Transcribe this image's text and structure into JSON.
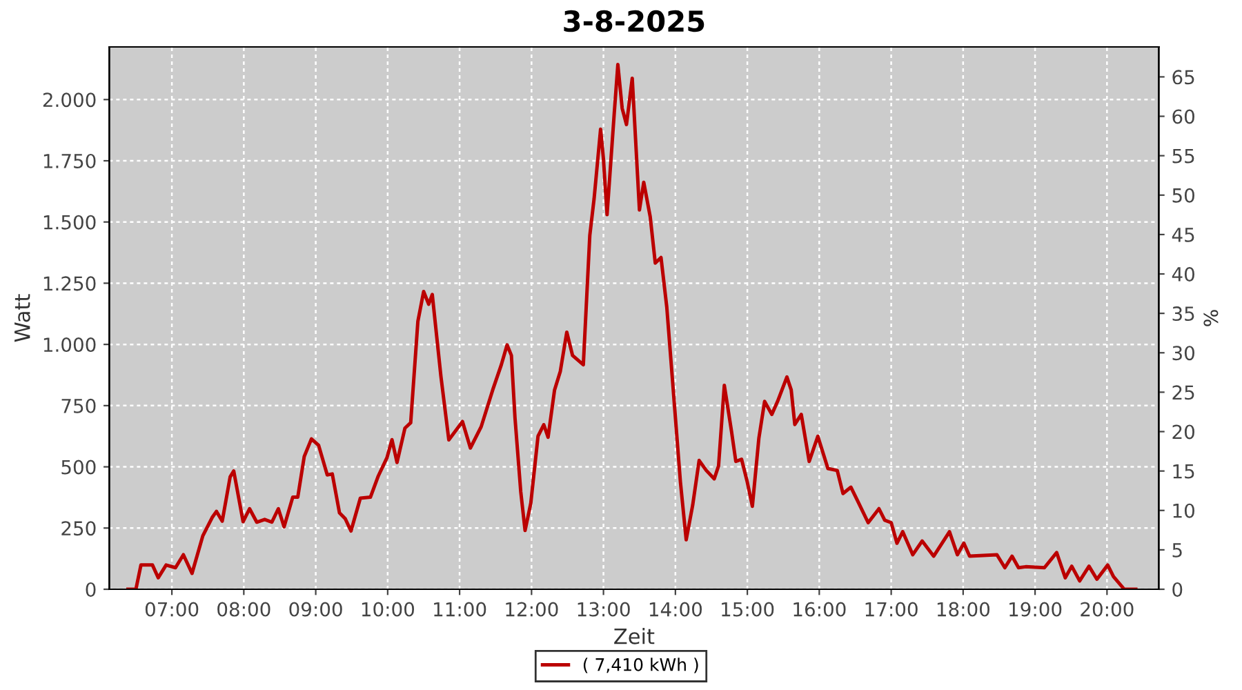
{
  "chart_data": {
    "type": "line",
    "title": "3-8-2025",
    "xlabel": "Zeit",
    "ylabel": "Watt",
    "y2label": "%",
    "xlim": [
      6.13,
      20.72
    ],
    "xticks": [
      {
        "value": 7,
        "label": "07:00"
      },
      {
        "value": 8,
        "label": "08:00"
      },
      {
        "value": 9,
        "label": "09:00"
      },
      {
        "value": 10,
        "label": "10:00"
      },
      {
        "value": 11,
        "label": "11:00"
      },
      {
        "value": 12,
        "label": "12:00"
      },
      {
        "value": 13,
        "label": "13:00"
      },
      {
        "value": 14,
        "label": "14:00"
      },
      {
        "value": 15,
        "label": "15:00"
      },
      {
        "value": 16,
        "label": "16:00"
      },
      {
        "value": 17,
        "label": "17:00"
      },
      {
        "value": 18,
        "label": "18:00"
      },
      {
        "value": 19,
        "label": "19:00"
      },
      {
        "value": 20,
        "label": "20:00"
      }
    ],
    "ylim": [
      0,
      2215
    ],
    "yticks": [
      0,
      {
        "value": 250,
        "label": "250"
      },
      {
        "value": 500,
        "label": "500"
      },
      {
        "value": 750,
        "label": "750"
      },
      {
        "value": 1000,
        "label": "1.000"
      },
      {
        "value": 1250,
        "label": "1.250"
      },
      {
        "value": 1500,
        "label": "1.500"
      },
      {
        "value": 1750,
        "label": "1.750"
      },
      {
        "value": 2000,
        "label": "2.000"
      }
    ],
    "y2lim": [
      0,
      68.8
    ],
    "y2ticks": [
      0,
      5,
      10,
      15,
      20,
      25,
      30,
      35,
      40,
      45,
      50,
      55,
      60,
      65
    ],
    "grid": true,
    "legend": "bottom",
    "marker": "none",
    "line_style": "solid",
    "series": [
      {
        "name": "( 7,410 kWh )",
        "color": "#bb0000",
        "x": [
          6.39,
          6.5,
          6.57,
          6.73,
          6.81,
          6.92,
          7.05,
          7.16,
          7.28,
          7.43,
          7.56,
          7.62,
          7.7,
          7.81,
          7.86,
          7.99,
          8.08,
          8.18,
          8.29,
          8.39,
          8.48,
          8.56,
          8.68,
          8.75,
          8.84,
          8.94,
          9.04,
          9.16,
          9.23,
          9.33,
          9.41,
          9.49,
          9.62,
          9.76,
          9.87,
          9.99,
          10.06,
          10.13,
          10.24,
          10.32,
          10.42,
          10.5,
          10.57,
          10.62,
          10.74,
          10.85,
          11.04,
          11.15,
          11.3,
          11.46,
          11.58,
          11.66,
          11.72,
          11.77,
          11.85,
          11.91,
          11.99,
          12.09,
          12.17,
          12.23,
          12.32,
          12.4,
          12.49,
          12.57,
          12.72,
          12.81,
          12.87,
          12.96,
          13.0,
          13.05,
          13.15,
          13.2,
          13.26,
          13.32,
          13.4,
          13.5,
          13.56,
          13.65,
          13.72,
          13.8,
          13.88,
          13.99,
          14.07,
          14.15,
          14.24,
          14.33,
          14.43,
          14.54,
          14.6,
          14.68,
          14.78,
          14.84,
          14.92,
          15.0,
          15.07,
          15.16,
          15.24,
          15.34,
          15.42,
          15.55,
          15.61,
          15.66,
          15.75,
          15.86,
          15.98,
          16.12,
          16.25,
          16.33,
          16.44,
          16.54,
          16.68,
          16.83,
          16.91,
          17.0,
          17.08,
          17.16,
          17.3,
          17.43,
          17.59,
          17.81,
          17.92,
          18.01,
          18.09,
          18.47,
          18.58,
          18.68,
          18.77,
          18.87,
          19.13,
          19.3,
          19.42,
          19.51,
          19.62,
          19.75,
          19.86,
          20.01,
          20.09,
          20.24,
          20.4
        ],
        "values": [
          0,
          0,
          99,
          99,
          47,
          99,
          88,
          141,
          65,
          218,
          293,
          318,
          278,
          459,
          483,
          276,
          329,
          274,
          285,
          274,
          329,
          255,
          376,
          376,
          542,
          614,
          588,
          467,
          471,
          312,
          288,
          238,
          372,
          376,
          463,
          537,
          611,
          518,
          658,
          680,
          1094,
          1216,
          1164,
          1204,
          870,
          610,
          685,
          577,
          664,
          814,
          917,
          998,
          955,
          700,
          399,
          240,
          352,
          625,
          672,
          621,
          814,
          890,
          1050,
          955,
          917,
          1445,
          1596,
          1879,
          1756,
          1530,
          1945,
          2143,
          1964,
          1898,
          2087,
          1549,
          1662,
          1521,
          1332,
          1355,
          1153,
          739,
          437,
          202,
          343,
          526,
          485,
          451,
          504,
          833,
          645,
          522,
          531,
          437,
          339,
          616,
          767,
          714,
          767,
          867,
          814,
          673,
          714,
          522,
          625,
          493,
          485,
          391,
          417,
          357,
          272,
          329,
          282,
          272,
          188,
          235,
          141,
          197,
          135,
          235,
          141,
          188,
          135,
          141,
          88,
          135,
          88,
          92,
          88,
          150,
          47,
          94,
          34,
          94,
          41,
          99,
          52,
          0,
          0
        ]
      }
    ]
  }
}
